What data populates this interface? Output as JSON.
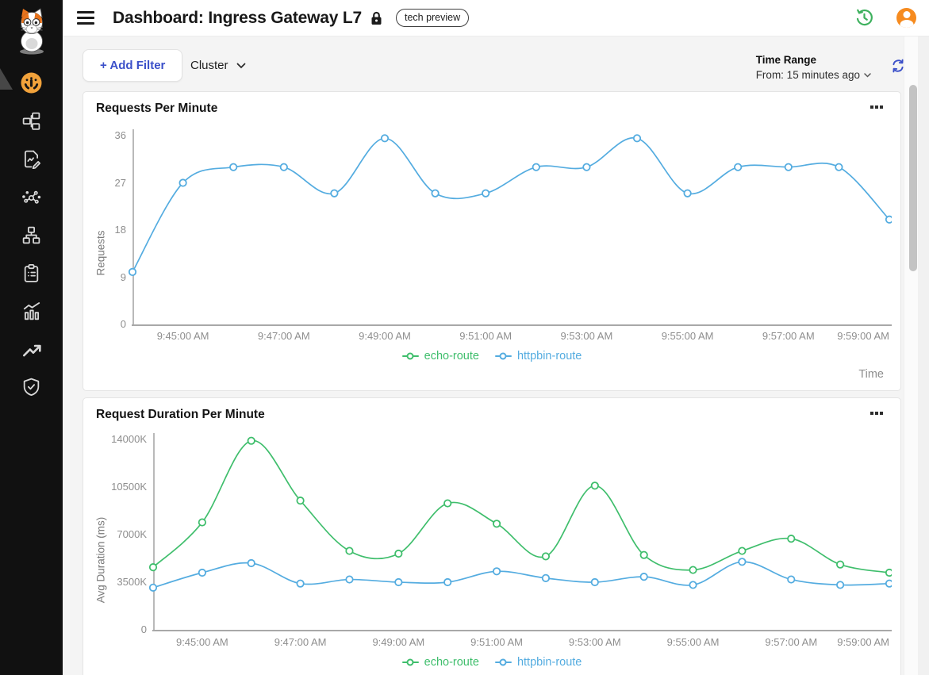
{
  "header": {
    "title": "Dashboard: Ingress Gateway L7",
    "badge": "tech preview",
    "menu_icon": "hamburger-menu-icon",
    "lock_icon": "lock-icon",
    "history_icon": "history-icon",
    "avatar_icon": "user-avatar-icon"
  },
  "sidebar": {
    "logo_icon": "kuma-cat-logo",
    "items": [
      {
        "icon": "gauge-icon",
        "active": true
      },
      {
        "icon": "topology-icon",
        "active": false
      },
      {
        "icon": "document-edit-icon",
        "active": false
      },
      {
        "icon": "service-nodes-icon",
        "active": false
      },
      {
        "icon": "sitemap-icon",
        "active": false
      },
      {
        "icon": "clipboard-list-icon",
        "active": false
      },
      {
        "icon": "bar-line-chart-icon",
        "active": false
      },
      {
        "icon": "trend-up-icon",
        "active": false
      },
      {
        "icon": "shield-check-icon",
        "active": false
      }
    ]
  },
  "toolbar": {
    "add_filter": "+ Add Filter",
    "cluster": "Cluster",
    "time_range_label": "Time Range",
    "time_range_value": "From: 15 minutes ago",
    "refresh_icon": "refresh-icon"
  },
  "colors": {
    "accent_indigo": "#3B50C9",
    "line_green": "#3FBE6C",
    "line_blue": "#54ACE0",
    "active_icon_orange": "#F1A23B",
    "avatar_orange": "#F68B1F",
    "history_green": "#3EB15E"
  },
  "chart_data": [
    {
      "type": "line",
      "title": "Requests Per Minute",
      "ylabel": "Requests",
      "xlabel": "Time",
      "ylim": [
        0,
        36
      ],
      "grid": false,
      "legend_position": "bottom",
      "yticks": [
        {
          "value": 0,
          "label": "0"
        },
        {
          "value": 9,
          "label": "9"
        },
        {
          "value": 18,
          "label": "18"
        },
        {
          "value": 27,
          "label": "27"
        },
        {
          "value": 36,
          "label": "36"
        }
      ],
      "x_labels": [
        "9:45:00 AM",
        "9:47:00 AM",
        "9:49:00 AM",
        "9:51:00 AM",
        "9:53:00 AM",
        "9:55:00 AM",
        "9:57:00 AM",
        "9:59:00 AM"
      ],
      "first_label_index": 1,
      "label_every": 2,
      "n_points": 16,
      "series": [
        {
          "name": "echo-route",
          "color": "#3FBE6C",
          "values": []
        },
        {
          "name": "httpbin-route",
          "color": "#54ACE0",
          "values": [
            10,
            27,
            30,
            30,
            25,
            35.5,
            25,
            25,
            30,
            30,
            35.5,
            25,
            30,
            30,
            30,
            20
          ]
        }
      ]
    },
    {
      "type": "line",
      "title": "Request Duration Per Minute",
      "ylabel": "Avg Duration (ms)",
      "ylim": [
        0,
        14000
      ],
      "grid": false,
      "legend_position": "bottom",
      "yticks": [
        {
          "value": 0,
          "label": "0"
        },
        {
          "value": 3500,
          "label": "3500K"
        },
        {
          "value": 7000,
          "label": "7000K"
        },
        {
          "value": 10500,
          "label": "10500K"
        },
        {
          "value": 14000,
          "label": "14000K"
        }
      ],
      "x_labels": [
        "9:45:00 AM",
        "9:47:00 AM",
        "9:49:00 AM",
        "9:51:00 AM",
        "9:53:00 AM",
        "9:55:00 AM",
        "9:57:00 AM",
        "9:59:00 AM"
      ],
      "first_label_index": 1,
      "label_every": 2,
      "n_points": 16,
      "series": [
        {
          "name": "echo-route",
          "color": "#3FBE6C",
          "values": [
            4600,
            7900,
            13900,
            9500,
            5800,
            5600,
            9300,
            7800,
            5400,
            10600,
            5500,
            4400,
            5800,
            6700,
            4800,
            4200
          ]
        },
        {
          "name": "httpbin-route",
          "color": "#54ACE0",
          "values": [
            3100,
            4200,
            4900,
            3400,
            3700,
            3500,
            3500,
            4300,
            3800,
            3500,
            3900,
            3300,
            5000,
            3700,
            3300,
            3400
          ]
        }
      ]
    }
  ]
}
